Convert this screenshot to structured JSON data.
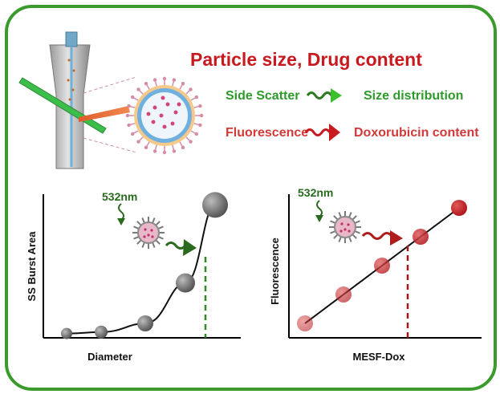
{
  "title": "Particle size, Drug content",
  "legend": {
    "scatter": {
      "from": "Side Scatter",
      "to": "Size distribution"
    },
    "fluorescence": {
      "from": "Fluorescence",
      "to": "Doxorubicin content"
    }
  },
  "colors": {
    "frame": "#3a9a2c",
    "title": "#c8191e",
    "scatter_text": "#2e9a2c",
    "fluor_text": "#d23a3a",
    "green_arrow": "#2a7a1e",
    "red_arrow": "#b01b1b"
  },
  "left_chart": {
    "wavelength": "532nm",
    "ylabel": "SS Burst Area",
    "xlabel": "Diameter"
  },
  "right_chart": {
    "wavelength": "532nm",
    "ylabel": "Fluorescence",
    "xlabel": "MESF-Dox"
  },
  "chart_data": [
    {
      "type": "scatter",
      "xlabel": "Diameter",
      "ylabel": "SS Burst Area",
      "x": [
        1,
        2,
        3,
        4,
        5
      ],
      "y": [
        0.03,
        0.04,
        0.1,
        0.38,
        0.92
      ],
      "fit": "exponential"
    },
    {
      "type": "scatter",
      "xlabel": "MESF-Dox",
      "ylabel": "Fluorescence",
      "x": [
        1,
        2,
        3,
        4,
        5
      ],
      "y": [
        0.1,
        0.3,
        0.5,
        0.7,
        0.9
      ],
      "fit": "linear"
    }
  ]
}
